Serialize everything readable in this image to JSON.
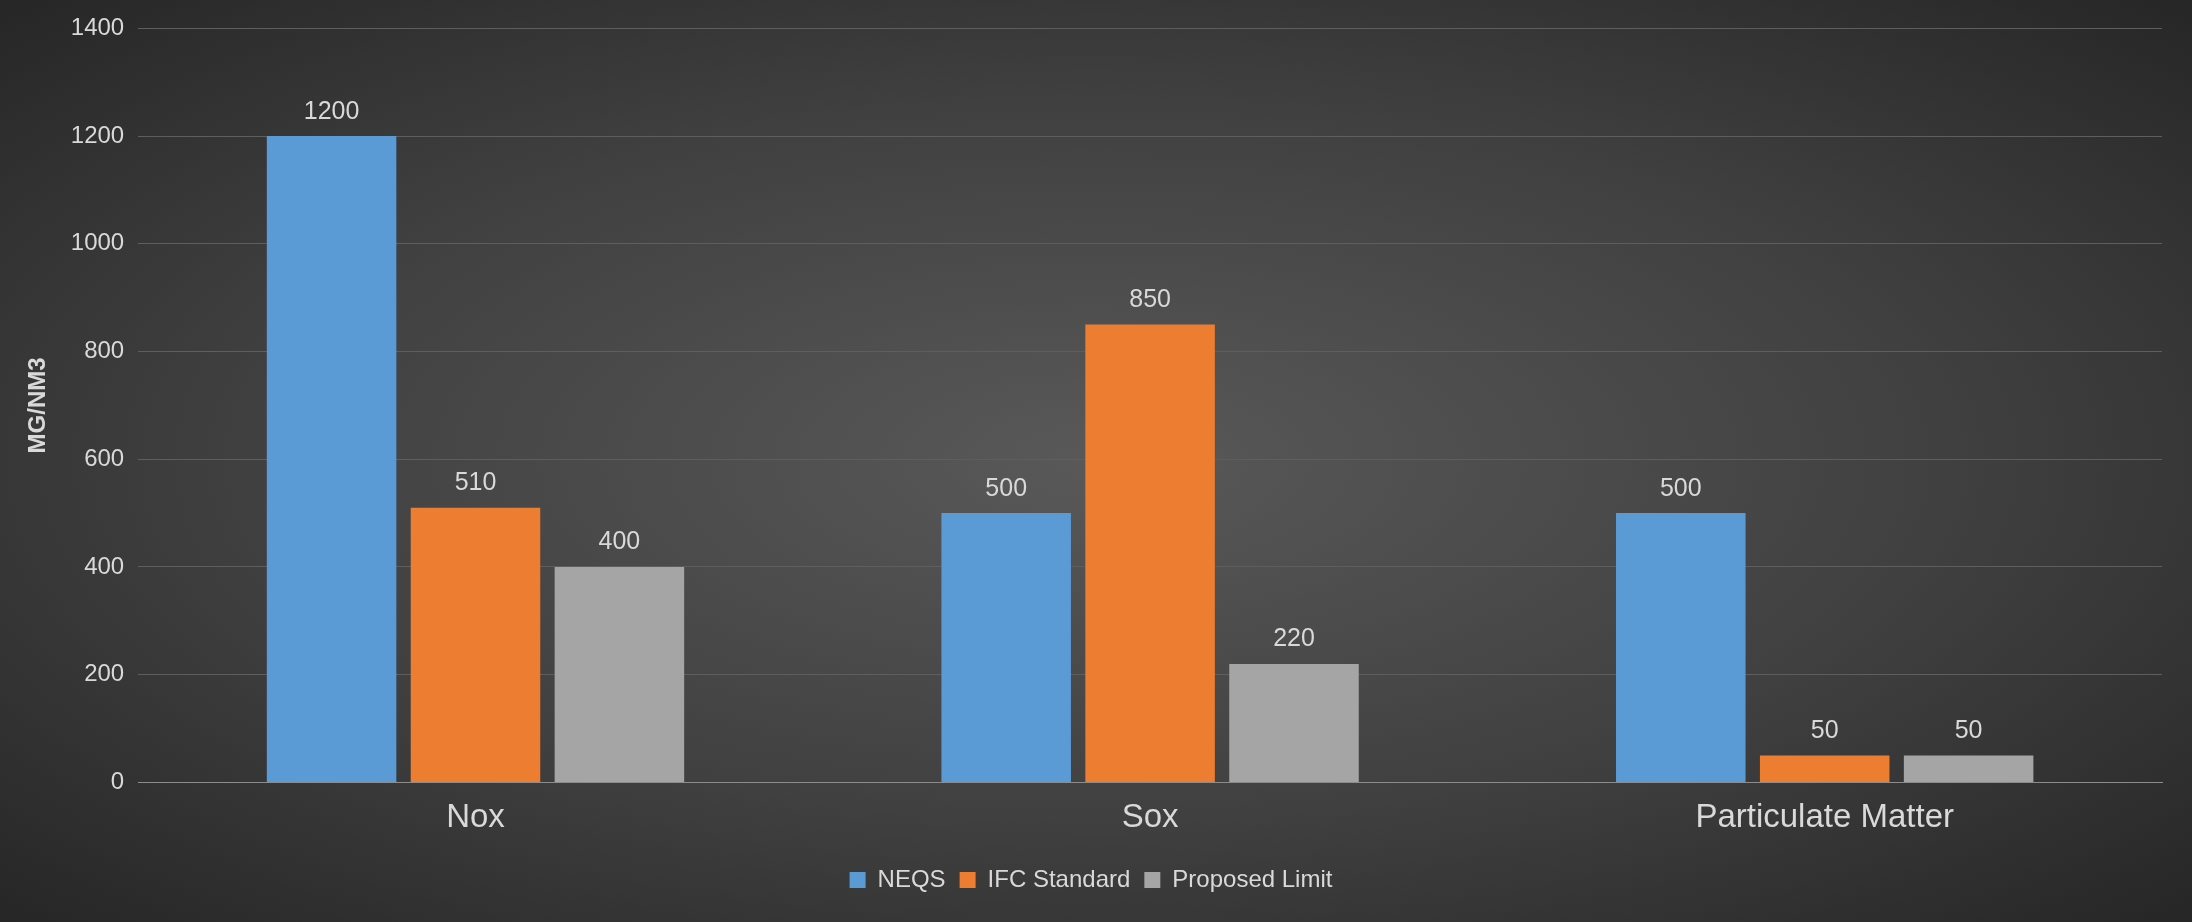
{
  "chart_data": {
    "type": "bar",
    "ylabel": "MG/NM3",
    "categories": [
      "Nox",
      "Sox",
      "Particulate Matter"
    ],
    "series": [
      {
        "name": "NEQS",
        "color": "#5b9bd5",
        "values": [
          1200,
          500,
          500
        ]
      },
      {
        "name": "IFC Standard",
        "color": "#ed7d31",
        "values": [
          510,
          850,
          50
        ]
      },
      {
        "name": "Proposed Limit",
        "color": "#a5a5a5",
        "values": [
          400,
          220,
          50
        ]
      }
    ],
    "ylim": [
      0,
      1400
    ],
    "yticks": [
      0,
      200,
      400,
      600,
      800,
      1000,
      1200,
      1400
    ],
    "grid": "y",
    "legend": "bottom",
    "data_labels": true
  }
}
